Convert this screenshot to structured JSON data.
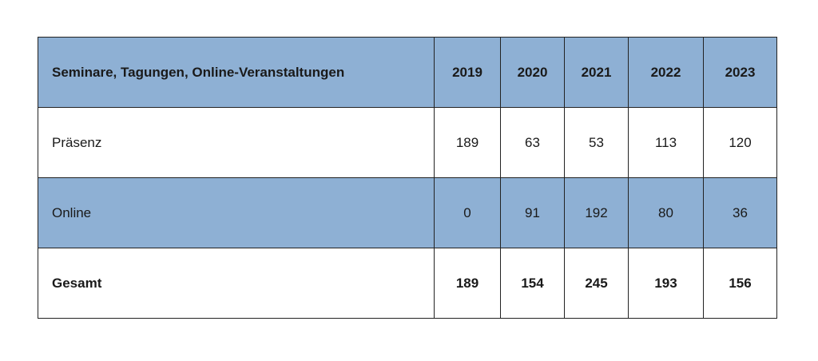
{
  "table": {
    "header": {
      "label": "Seminare, Tagungen, Online-Veranstaltungen",
      "years": [
        "2019",
        "2020",
        "2021",
        "2022",
        "2023"
      ]
    },
    "rows": [
      {
        "label": "Präsenz",
        "values": [
          "189",
          "63",
          "53",
          "113",
          "120"
        ]
      },
      {
        "label": "Online",
        "values": [
          "0",
          "91",
          "192",
          "80",
          "36"
        ]
      },
      {
        "label": "Gesamt",
        "values": [
          "189",
          "154",
          "245",
          "193",
          "156"
        ]
      }
    ]
  },
  "colors": {
    "header_bg": "#8eb0d4",
    "alt_row_bg": "#8eb0d4",
    "border": "#222222"
  }
}
